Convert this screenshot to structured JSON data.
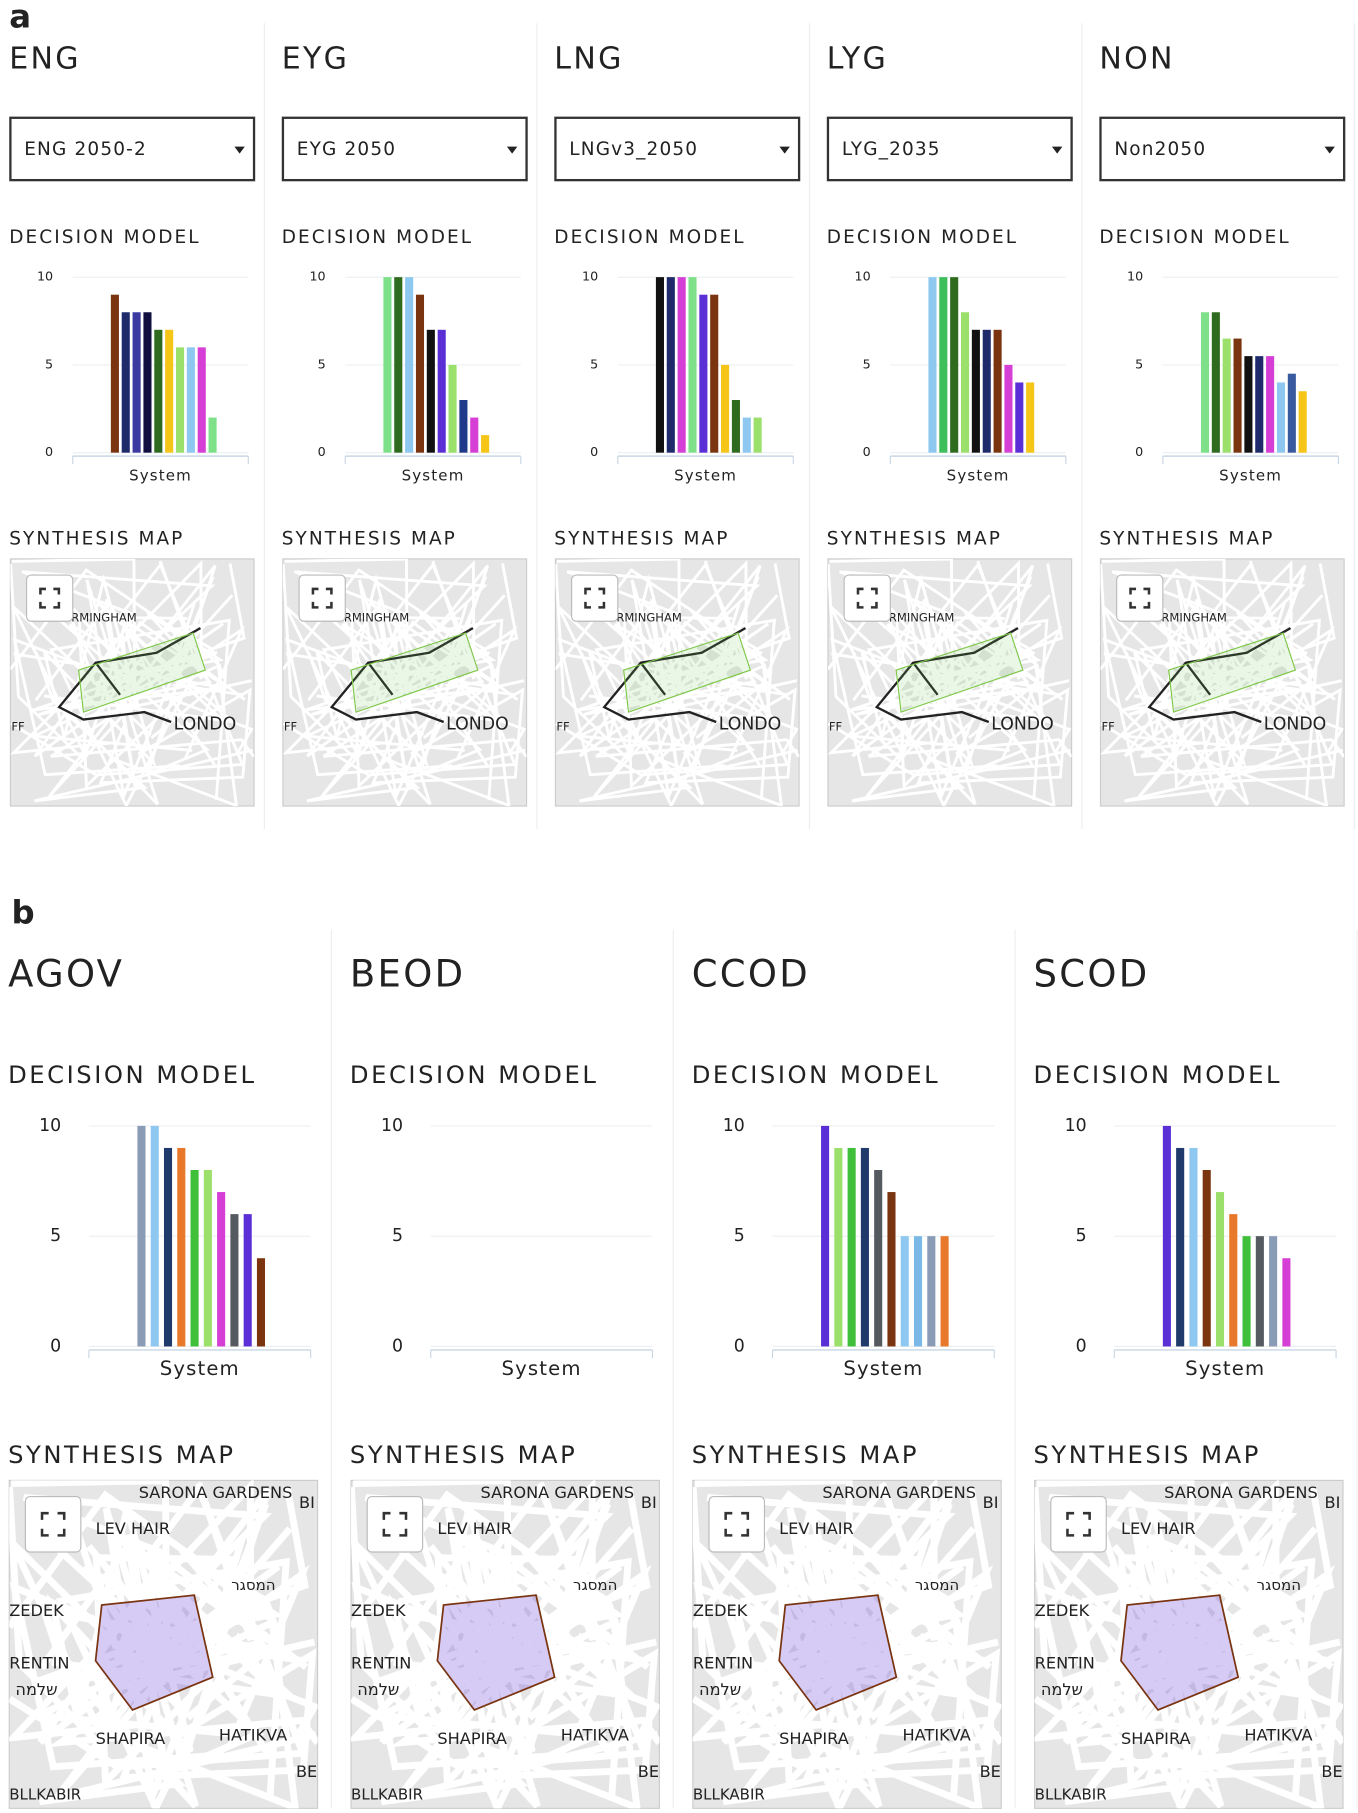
{
  "panels": [
    {
      "label": "a",
      "map_labels": [
        "RMINGHAM",
        "LONDO",
        "IFF"
      ],
      "columns": [
        {
          "title": "ENG",
          "dropdown": "ENG 2050-2",
          "decision_heading": "DECISION MODEL",
          "map_heading": "SYNTHESIS MAP",
          "chart": {
            "type": "bar",
            "categories": [
              "System"
            ],
            "ylim": [
              0,
              10
            ],
            "yticks": [
              0,
              5,
              10
            ],
            "values": [
              9,
              8,
              8,
              8,
              7,
              7,
              6,
              6,
              6,
              2
            ],
            "colors": [
              "#7a3410",
              "#1f2a6b",
              "#3a3aa0",
              "#101040",
              "#2e6b1e",
              "#f5c518",
              "#9be06a",
              "#8ec8f0",
              "#d63fd6",
              "#7fe08a"
            ]
          }
        },
        {
          "title": "EYG",
          "dropdown": "EYG 2050",
          "decision_heading": "DECISION MODEL",
          "map_heading": "SYNTHESIS MAP",
          "chart": {
            "type": "bar",
            "categories": [
              "System"
            ],
            "ylim": [
              0,
              10
            ],
            "yticks": [
              0,
              5,
              10
            ],
            "values": [
              10,
              10,
              10,
              9,
              7,
              7,
              5,
              3,
              2,
              1
            ],
            "colors": [
              "#7fe08a",
              "#2e6b1e",
              "#8ec8f0",
              "#7a3410",
              "#111111",
              "#5b2fd6",
              "#9be06a",
              "#1f3a8a",
              "#d63fd6",
              "#f5c518"
            ]
          }
        },
        {
          "title": "LNG",
          "dropdown": "LNGv3_2050",
          "decision_heading": "DECISION MODEL",
          "map_heading": "SYNTHESIS MAP",
          "chart": {
            "type": "bar",
            "categories": [
              "System"
            ],
            "ylim": [
              0,
              10
            ],
            "yticks": [
              0,
              5,
              10
            ],
            "values": [
              10,
              10,
              10,
              10,
              9,
              9,
              5,
              3,
              2,
              2
            ],
            "colors": [
              "#111111",
              "#1f2a6b",
              "#d63fd6",
              "#7fe08a",
              "#5b2fd6",
              "#7a3410",
              "#f5c518",
              "#2e6b1e",
              "#8ec8f0",
              "#9be06a"
            ]
          }
        },
        {
          "title": "LYG",
          "dropdown": "LYG_2035",
          "decision_heading": "DECISION MODEL",
          "map_heading": "SYNTHESIS MAP",
          "chart": {
            "type": "bar",
            "categories": [
              "System"
            ],
            "ylim": [
              0,
              10
            ],
            "yticks": [
              0,
              5,
              10
            ],
            "values": [
              10,
              10,
              10,
              8,
              7,
              7,
              7,
              5,
              4,
              4
            ],
            "colors": [
              "#8ec8f0",
              "#3fbf5a",
              "#2e6b1e",
              "#9be06a",
              "#111111",
              "#1f2a6b",
              "#7a3410",
              "#d63fd6",
              "#5b2fd6",
              "#f5c518"
            ]
          }
        },
        {
          "title": "NON",
          "dropdown": "Non2050",
          "decision_heading": "DECISION MODEL",
          "map_heading": "SYNTHESIS MAP",
          "chart": {
            "type": "bar",
            "categories": [
              "System"
            ],
            "ylim": [
              0,
              10
            ],
            "yticks": [
              0,
              5,
              10
            ],
            "values": [
              8,
              8,
              6.5,
              6.5,
              5.5,
              5.5,
              5.5,
              4,
              4.5,
              3.5
            ],
            "colors": [
              "#7fe08a",
              "#2e6b1e",
              "#9be06a",
              "#7a3410",
              "#111111",
              "#1f2a6b",
              "#d63fd6",
              "#8ec8f0",
              "#3a5aa0",
              "#f5c518"
            ]
          }
        }
      ]
    },
    {
      "label": "b",
      "map_labels": [
        "SARONA GARDENS",
        "BI",
        "LEV HAIR",
        "המסגר",
        "ZEDEK",
        "RENTIN",
        "שלמה",
        "SHAPIRA",
        "HATIKVA",
        "BE",
        "BLLKABIR"
      ],
      "columns": [
        {
          "title": "AGOV",
          "decision_heading": "DECISION MODEL",
          "map_heading": "SYNTHESIS MAP",
          "chart": {
            "type": "bar",
            "categories": [
              "System"
            ],
            "ylim": [
              0,
              10
            ],
            "yticks": [
              0,
              5,
              10
            ],
            "values": [
              10,
              10,
              9,
              9,
              8,
              8,
              7,
              6,
              6,
              4
            ],
            "colors": [
              "#8a9bb5",
              "#8ec8f0",
              "#1f3a6b",
              "#e8782a",
              "#3fbf3a",
              "#9be06a",
              "#d63fd6",
              "#555a60",
              "#5b2fd6",
              "#7a3410"
            ]
          }
        },
        {
          "title": "BEOD",
          "decision_heading": "DECISION MODEL",
          "map_heading": "SYNTHESIS MAP",
          "chart": {
            "type": "bar",
            "categories": [
              "System"
            ],
            "ylim": [
              0,
              10
            ],
            "yticks": [
              0,
              5,
              10
            ],
            "values": [],
            "colors": []
          }
        },
        {
          "title": "CCOD",
          "decision_heading": "DECISION MODEL",
          "map_heading": "SYNTHESIS MAP",
          "chart": {
            "type": "bar",
            "categories": [
              "System"
            ],
            "ylim": [
              0,
              10
            ],
            "yticks": [
              0,
              5,
              10
            ],
            "values": [
              10,
              9,
              9,
              9,
              8,
              7,
              5,
              5,
              5,
              5
            ],
            "colors": [
              "#5b2fd6",
              "#9be06a",
              "#3fbf3a",
              "#1f3a6b",
              "#555a60",
              "#7a3410",
              "#8ec8f0",
              "#7ab8e8",
              "#8a9bb5",
              "#e8782a"
            ]
          }
        },
        {
          "title": "SCOD",
          "decision_heading": "DECISION MODEL",
          "map_heading": "SYNTHESIS MAP",
          "chart": {
            "type": "bar",
            "categories": [
              "System"
            ],
            "ylim": [
              0,
              10
            ],
            "yticks": [
              0,
              5,
              10
            ],
            "values": [
              10,
              9,
              9,
              8,
              7,
              6,
              5,
              5,
              5,
              4
            ],
            "colors": [
              "#5b2fd6",
              "#1f3a6b",
              "#8ec8f0",
              "#7a3410",
              "#9be06a",
              "#e8782a",
              "#3fbf3a",
              "#555a60",
              "#8a9bb5",
              "#d63fd6"
            ]
          }
        }
      ]
    }
  ]
}
